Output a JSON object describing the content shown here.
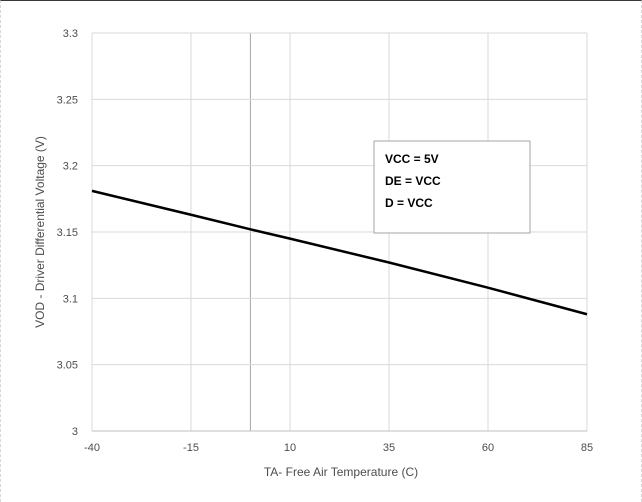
{
  "chart_data": {
    "type": "line",
    "title": "",
    "xlabel": "TA- Free Air Temperature (C)",
    "ylabel": "VOD - Driver Differential Voltage (V)",
    "xlim": [
      -40,
      85
    ],
    "ylim": [
      3.0,
      3.3
    ],
    "x_ticks": [
      -40,
      -15,
      10,
      35,
      60,
      85
    ],
    "x_tick_labels": [
      "-40",
      "-15",
      "10",
      "35",
      "60",
      "85"
    ],
    "y_ticks": [
      3.0,
      3.05,
      3.1,
      3.15,
      3.2,
      3.25,
      3.3
    ],
    "y_tick_labels": [
      "3",
      "3.05",
      "3.1",
      "3.15",
      "3.2",
      "3.25",
      "3.3"
    ],
    "grid": true,
    "series": [
      {
        "x": [
          -40,
          -15,
          0,
          10,
          35,
          60,
          85
        ],
        "y": [
          3.181,
          3.163,
          3.152,
          3.145,
          3.127,
          3.108,
          3.088
        ],
        "color": "#000000"
      }
    ],
    "annotation": {
      "lines": [
        "VCC = 5V",
        "DE = VCC",
        "D = VCC"
      ]
    },
    "colors": {
      "line": "#000000",
      "grid": "#d9d9d9",
      "axis_text": "#4d4d4d"
    }
  }
}
